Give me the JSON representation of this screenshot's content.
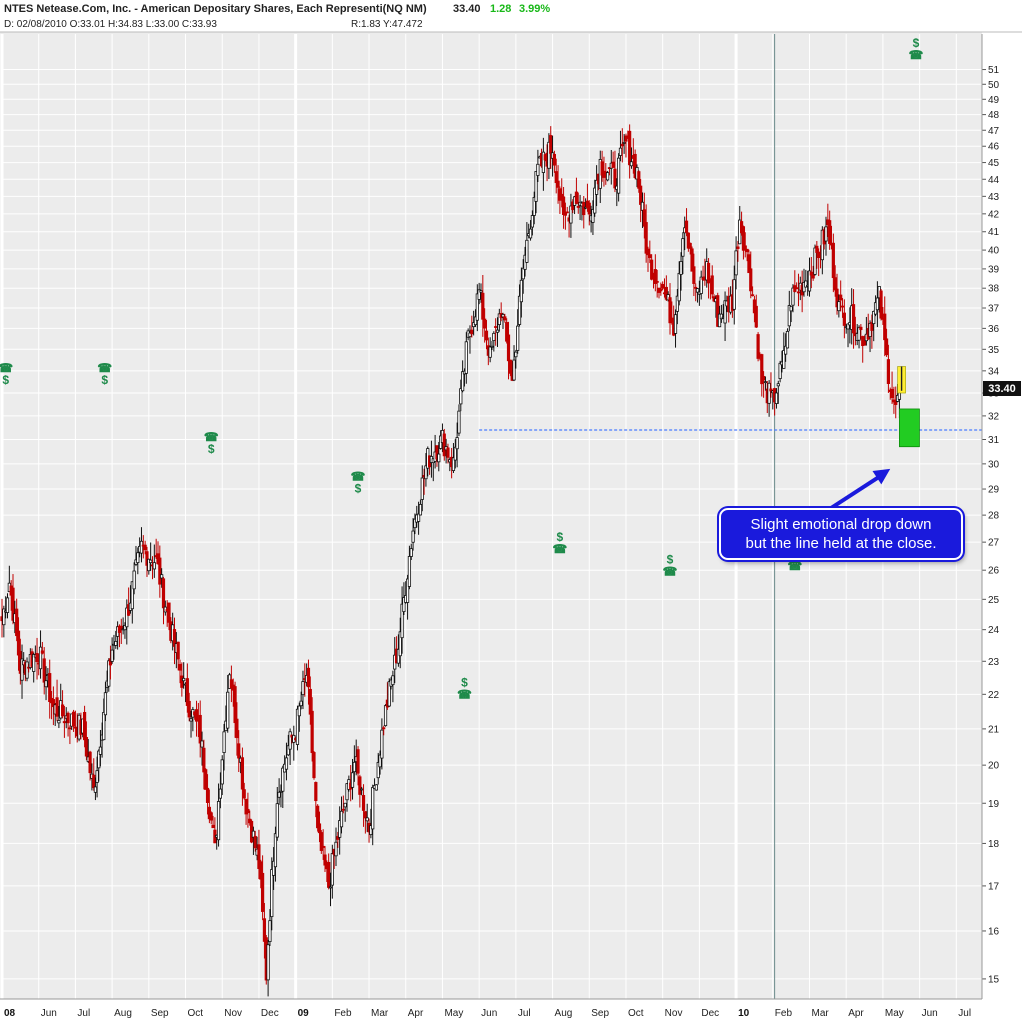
{
  "header": {
    "title": "NTES Netease.Com, Inc. - American Depositary Shares, Each Representi(NQ NM)",
    "last_price": "33.40",
    "change": "1.28",
    "change_pct": "3.99%",
    "date_line": "D: 02/08/2010 O:33.01 H:34.83 L:33.00 C:33.93",
    "range_line": "R:1.83 Y:47.472"
  },
  "price_tag": "33.40",
  "callout": {
    "line1": "Slight emotional drop down",
    "line2": "but the line held at the close."
  },
  "colors": {
    "down_candle": "#c00000",
    "up_candle": "#111111",
    "support_line": "#4a7cff",
    "callout_bg": "#1a1adc",
    "event_icon": "#1e8a4a",
    "highlight_green": "#22cc22",
    "highlight_yellow": "#ffee33"
  },
  "chart_data": {
    "type": "candlestick",
    "title": "NTES Netease.Com, Inc. - American Depositary Shares, Each Representi(NQ NM)",
    "y_scale": "log",
    "ylim": [
      14.6,
      53.5
    ],
    "y_ticks": [
      15,
      16,
      17,
      18,
      19,
      20,
      21,
      22,
      23,
      24,
      25,
      26,
      27,
      28,
      29,
      30,
      31,
      32,
      33,
      34,
      35,
      36,
      37,
      38,
      39,
      40,
      41,
      42,
      43,
      44,
      45,
      46,
      47,
      48,
      49,
      50,
      51
    ],
    "x_ticks": [
      "08",
      "Jun",
      "Jul",
      "Aug",
      "Sep",
      "Oct",
      "Nov",
      "Dec",
      "09",
      "Feb",
      "Mar",
      "Apr",
      "May",
      "Jun",
      "Jul",
      "Aug",
      "Sep",
      "Oct",
      "Nov",
      "Dec",
      "10",
      "Feb",
      "Mar",
      "Apr",
      "May",
      "Jun",
      "Jul"
    ],
    "x_tick_months": [
      4,
      5,
      6,
      7,
      8,
      9,
      10,
      11,
      12,
      13,
      14,
      15,
      16,
      17,
      18,
      19,
      20,
      21,
      22,
      23,
      24,
      25,
      26,
      27,
      28,
      29,
      30
    ],
    "x_range_months": [
      4.0,
      30.7
    ],
    "bold_x_ticks": [
      "08",
      "09",
      "10"
    ],
    "support_level": 31.4,
    "last_close": 33.4,
    "key_points": [
      {
        "month": 4.0,
        "close": 24.3
      },
      {
        "month": 4.2,
        "close": 25.6
      },
      {
        "month": 4.5,
        "close": 22.8
      },
      {
        "month": 5.0,
        "close": 23.3
      },
      {
        "month": 5.4,
        "close": 21.6
      },
      {
        "month": 5.8,
        "close": 21.3
      },
      {
        "month": 6.2,
        "close": 21.0
      },
      {
        "month": 6.5,
        "close": 19.3
      },
      {
        "month": 7.0,
        "close": 23.4
      },
      {
        "month": 7.4,
        "close": 24.5
      },
      {
        "month": 7.8,
        "close": 26.8
      },
      {
        "month": 8.2,
        "close": 26.3
      },
      {
        "month": 8.6,
        "close": 24.0
      },
      {
        "month": 9.0,
        "close": 22.0
      },
      {
        "month": 9.4,
        "close": 20.8
      },
      {
        "month": 9.8,
        "close": 17.8
      },
      {
        "month": 10.2,
        "close": 22.8
      },
      {
        "month": 10.6,
        "close": 19.2
      },
      {
        "month": 11.0,
        "close": 17.5
      },
      {
        "month": 11.2,
        "close": 15.1
      },
      {
        "month": 11.5,
        "close": 19.2
      },
      {
        "month": 11.8,
        "close": 20.5
      },
      {
        "month": 12.0,
        "close": 21.0
      },
      {
        "month": 12.3,
        "close": 22.6
      },
      {
        "month": 12.6,
        "close": 18.2
      },
      {
        "month": 12.9,
        "close": 17.0
      },
      {
        "month": 13.2,
        "close": 18.4
      },
      {
        "month": 13.6,
        "close": 20.1
      },
      {
        "month": 14.0,
        "close": 18.4
      },
      {
        "month": 14.4,
        "close": 21.2
      },
      {
        "month": 14.8,
        "close": 23.5
      },
      {
        "month": 15.2,
        "close": 27.5
      },
      {
        "month": 15.6,
        "close": 30.2
      },
      {
        "month": 16.0,
        "close": 31.0
      },
      {
        "month": 16.3,
        "close": 30.0
      },
      {
        "month": 16.7,
        "close": 35.5
      },
      {
        "month": 17.0,
        "close": 37.8
      },
      {
        "month": 17.3,
        "close": 34.6
      },
      {
        "month": 17.6,
        "close": 37.0
      },
      {
        "month": 17.9,
        "close": 33.5
      },
      {
        "month": 18.2,
        "close": 39.0
      },
      {
        "month": 18.6,
        "close": 44.5
      },
      {
        "month": 19.0,
        "close": 46.0
      },
      {
        "month": 19.3,
        "close": 41.5
      },
      {
        "month": 19.6,
        "close": 43.0
      },
      {
        "month": 20.0,
        "close": 42.0
      },
      {
        "month": 20.3,
        "close": 45.0
      },
      {
        "month": 20.7,
        "close": 44.0
      },
      {
        "month": 21.0,
        "close": 46.2
      },
      {
        "month": 21.3,
        "close": 44.5
      },
      {
        "month": 21.6,
        "close": 39.5
      },
      {
        "month": 22.0,
        "close": 38.0
      },
      {
        "month": 22.3,
        "close": 36.2
      },
      {
        "month": 22.6,
        "close": 41.8
      },
      {
        "month": 22.9,
        "close": 37.5
      },
      {
        "month": 23.2,
        "close": 39.0
      },
      {
        "month": 23.5,
        "close": 36.6
      },
      {
        "month": 23.9,
        "close": 37.4
      },
      {
        "month": 24.1,
        "close": 41.8
      },
      {
        "month": 24.4,
        "close": 38.5
      },
      {
        "month": 24.7,
        "close": 33.5
      },
      {
        "month": 25.0,
        "close": 32.6
      },
      {
        "month": 25.3,
        "close": 34.5
      },
      {
        "month": 25.5,
        "close": 37.5
      },
      {
        "month": 25.8,
        "close": 38.2
      },
      {
        "month": 26.1,
        "close": 39.2
      },
      {
        "month": 26.5,
        "close": 41.2
      },
      {
        "month": 26.8,
        "close": 37.0
      },
      {
        "month": 27.2,
        "close": 36.4
      },
      {
        "month": 27.5,
        "close": 35.5
      },
      {
        "month": 27.9,
        "close": 37.5
      },
      {
        "month": 28.1,
        "close": 34.5
      },
      {
        "month": 28.25,
        "close": 33.0
      },
      {
        "month": 28.35,
        "close": 32.2
      },
      {
        "month": 28.45,
        "close": 33.4
      }
    ],
    "event_markers": [
      {
        "month": 4.1,
        "price": 33.9,
        "order": "phone-over-dollar"
      },
      {
        "month": 6.8,
        "price": 33.9,
        "order": "phone-over-dollar"
      },
      {
        "month": 9.7,
        "price": 30.9,
        "order": "phone-over-dollar"
      },
      {
        "month": 13.7,
        "price": 29.3,
        "order": "phone-over-dollar"
      },
      {
        "month": 16.6,
        "price": 22.2,
        "order": "dollar-over-phone"
      },
      {
        "month": 19.2,
        "price": 27.0,
        "order": "dollar-over-phone"
      },
      {
        "month": 22.2,
        "price": 26.2,
        "order": "dollar-over-phone"
      },
      {
        "month": 25.6,
        "price": 26.4,
        "order": "dollar-over-phone"
      },
      {
        "month": 28.9,
        "price": 52.5,
        "order": "dollar-over-phone"
      }
    ],
    "vertical_marker_month": 25.05
  }
}
